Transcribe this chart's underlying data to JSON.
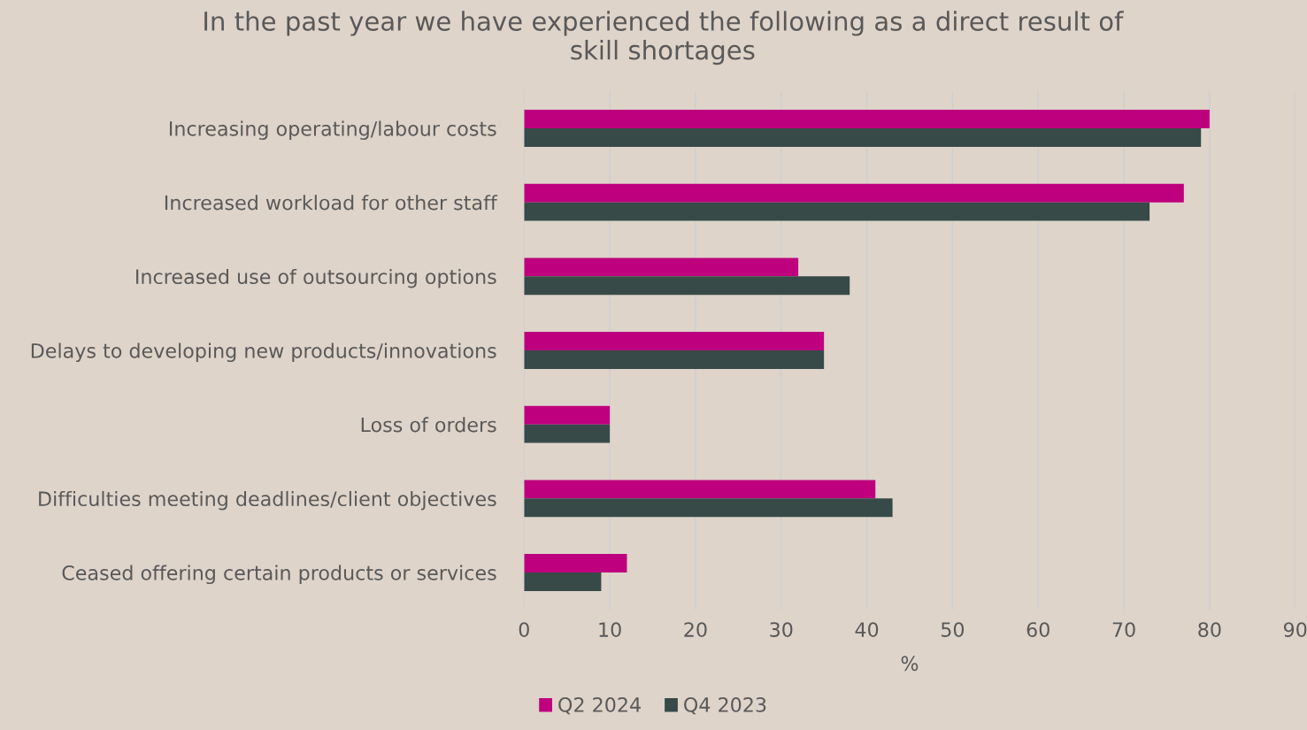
{
  "chart_data": {
    "type": "bar",
    "orientation": "horizontal",
    "title": "In the past year we have experienced the following as a direct result of\nskill shortages",
    "xlabel": "%",
    "categories": [
      "Increasing operating/labour costs",
      "Increased workload for other staff",
      "Increased use of outsourcing options",
      "Delays to developing new products/innovations",
      "Loss of orders",
      "Difficulties meeting deadlines/client objectives",
      "Ceased offering certain products or services"
    ],
    "series": [
      {
        "name": "Q2 2024",
        "color": "#be007e",
        "values": [
          80,
          77,
          32,
          35,
          10,
          41,
          12
        ]
      },
      {
        "name": "Q4 2023",
        "color": "#374a48",
        "values": [
          79,
          73,
          38,
          35,
          10,
          43,
          9
        ]
      }
    ],
    "xlim": [
      0,
      90
    ],
    "xticks": [
      0,
      10,
      20,
      30,
      40,
      50,
      60,
      70,
      80,
      90
    ],
    "grid": "x",
    "legend": "bottom"
  }
}
